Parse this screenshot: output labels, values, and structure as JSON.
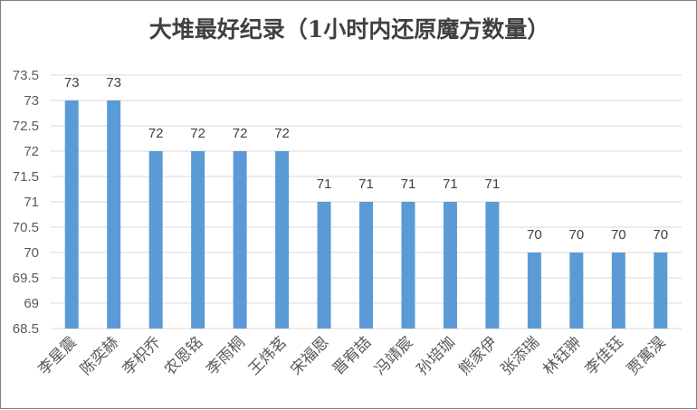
{
  "chart_data": {
    "type": "bar",
    "title": "大堆最好纪录（1小时内还原魔方数量）",
    "categories": [
      "李星震",
      "陈奕赫",
      "李枳乔",
      "农恩铭",
      "李雨桐",
      "王炜茗",
      "宋福恩",
      "晋宥喆",
      "冯靖宸",
      "孙培珈",
      "熊家伊",
      "张添瑞",
      "林钰翀",
      "李佳钰",
      "贾寓淏"
    ],
    "values": [
      73,
      73,
      72,
      72,
      72,
      72,
      71,
      71,
      71,
      71,
      71,
      70,
      70,
      70,
      70
    ],
    "data_labels": [
      "73",
      "73",
      "72",
      "72",
      "72",
      "72",
      "71",
      "71",
      "71",
      "71",
      "71",
      "70",
      "70",
      "70",
      "70"
    ],
    "y_ticks": [
      "73.5",
      "73",
      "72.5",
      "72",
      "71.5",
      "71",
      "70.5",
      "70",
      "69.5",
      "69",
      "68.5"
    ],
    "ylim": [
      68.5,
      73.5
    ],
    "xlabel": "",
    "ylabel": "",
    "grid": true,
    "legend": "none",
    "colors": {
      "bar": "#5b9bd5",
      "grid": "#d9d9d9",
      "text": "#404040",
      "axis_text": "#595959"
    }
  }
}
